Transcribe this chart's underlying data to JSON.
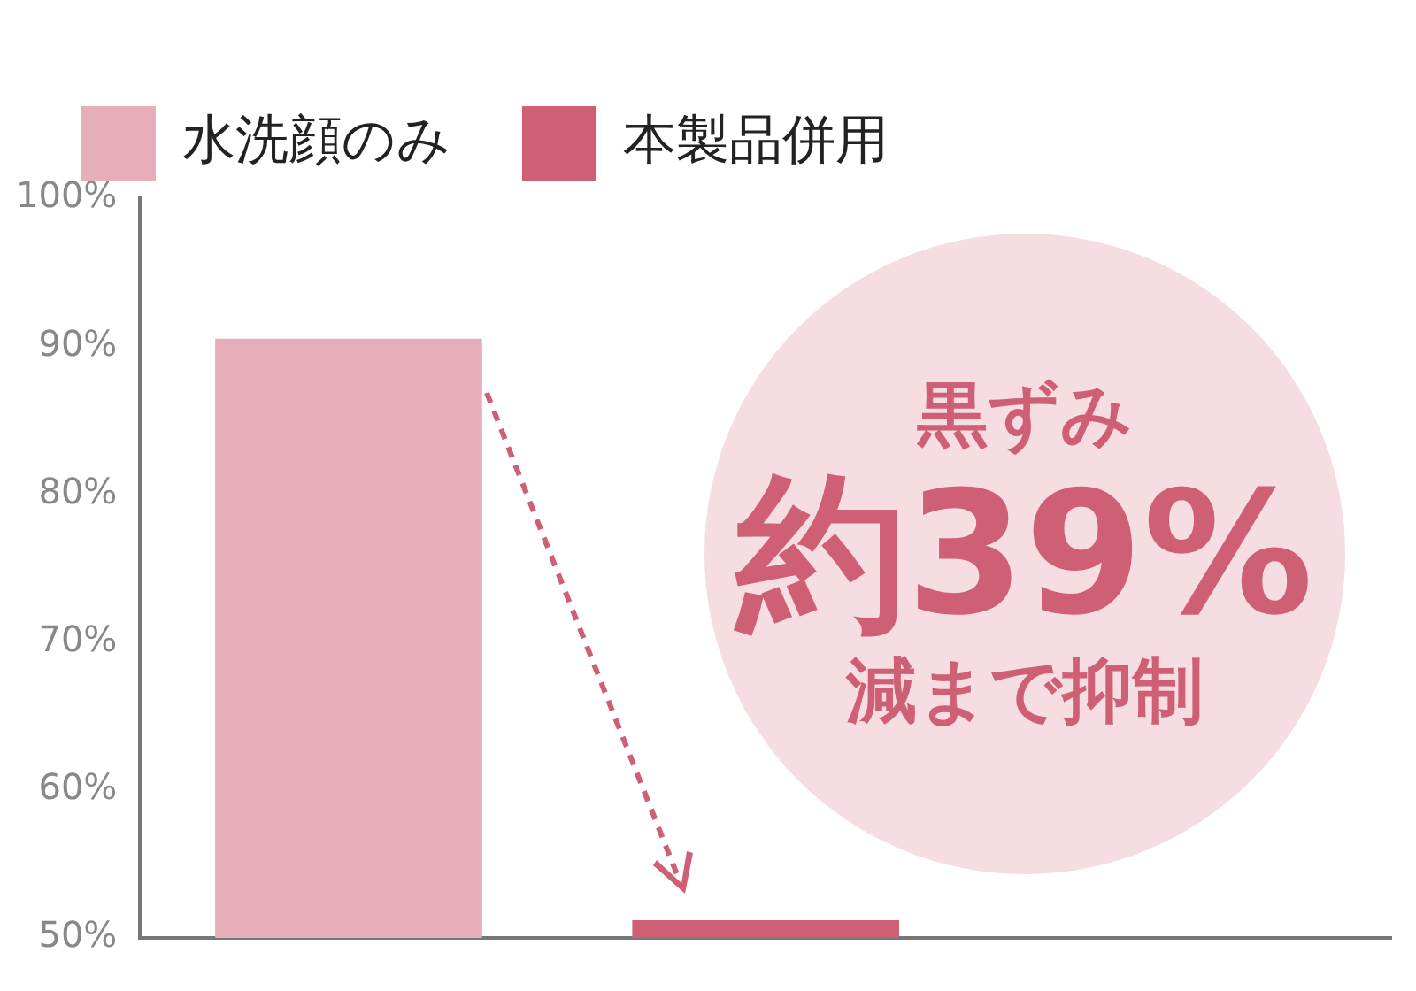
{
  "chart_data": {
    "type": "bar",
    "categories": [
      null,
      null,
      null
    ],
    "series": [
      {
        "name": "水洗顔のみ",
        "color": "#e5aeb9",
        "values": [
          90.5,
          null,
          null
        ]
      },
      {
        "name": "本製品併用",
        "color": "#cf5f75",
        "values": [
          null,
          51.2,
          null
        ]
      }
    ],
    "ylim": [
      50,
      100
    ],
    "yticks": [
      {
        "value": 50,
        "label": "50%"
      },
      {
        "value": 60,
        "label": "60%"
      },
      {
        "value": 70,
        "label": "70%"
      },
      {
        "value": 80,
        "label": "80%"
      },
      {
        "value": 90,
        "label": "90%"
      },
      {
        "value": 100,
        "label": "100%"
      }
    ],
    "grid": false,
    "legend": "top left",
    "annotations": [
      "黒ずみ",
      "約39%",
      "減まで抑制"
    ]
  }
}
